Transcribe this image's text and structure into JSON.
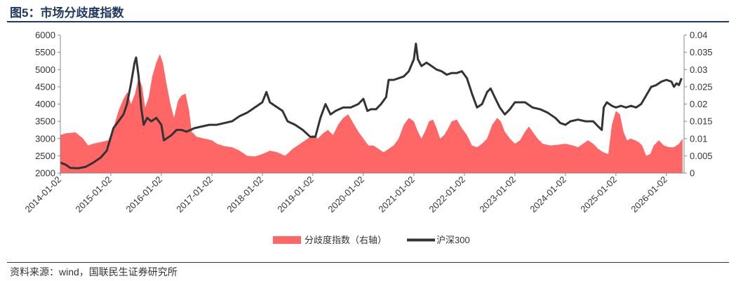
{
  "page": {
    "title": "图5：市场分歧度指数",
    "source": "资料来源：wind，国联民生证券研究所"
  },
  "chart_data": {
    "type": "area+line",
    "title": "",
    "x_tick_labels": [
      "2014-01-02",
      "2015-01-02",
      "2016-01-02",
      "2017-01-02",
      "2018-01-02",
      "2019-01-02",
      "2020-01-02",
      "2021-01-02",
      "2022-01-02",
      "2023-01-02",
      "2024-01-02",
      "2025-01-02",
      "2026-01-02"
    ],
    "x_range": [
      2014.0,
      2026.35
    ],
    "y_left": {
      "range": [
        2000,
        6000
      ],
      "ticks": [
        2000,
        2500,
        3000,
        3500,
        4000,
        4500,
        5000,
        5500,
        6000
      ]
    },
    "y_right": {
      "range": [
        0,
        0.04
      ],
      "ticks": [
        "0",
        "0.005",
        "0.01",
        "0.015",
        "0.02",
        "0.025",
        "0.03",
        "0.035",
        "0.04"
      ]
    },
    "legend_position": "bottom",
    "series": [
      {
        "name": "分歧度指数（右轴）",
        "type": "area",
        "axis": "right",
        "color": "#ff6666",
        "points": [
          [
            2014.0,
            0.011
          ],
          [
            2014.1,
            0.0115
          ],
          [
            2014.3,
            0.0118
          ],
          [
            2014.45,
            0.01
          ],
          [
            2014.55,
            0.008
          ],
          [
            2014.65,
            0.0085
          ],
          [
            2014.8,
            0.009
          ],
          [
            2014.95,
            0.0095
          ],
          [
            2015.05,
            0.013
          ],
          [
            2015.15,
            0.018
          ],
          [
            2015.25,
            0.0215
          ],
          [
            2015.33,
            0.0235
          ],
          [
            2015.4,
            0.02
          ],
          [
            2015.48,
            0.023
          ],
          [
            2015.55,
            0.028
          ],
          [
            2015.62,
            0.025
          ],
          [
            2015.68,
            0.019
          ],
          [
            2015.75,
            0.022
          ],
          [
            2015.82,
            0.028
          ],
          [
            2015.9,
            0.032
          ],
          [
            2015.97,
            0.0345
          ],
          [
            2016.03,
            0.032
          ],
          [
            2016.1,
            0.026
          ],
          [
            2016.18,
            0.02
          ],
          [
            2016.25,
            0.016
          ],
          [
            2016.33,
            0.021
          ],
          [
            2016.4,
            0.0225
          ],
          [
            2016.48,
            0.023
          ],
          [
            2016.55,
            0.018
          ],
          [
            2016.6,
            0.012
          ],
          [
            2016.7,
            0.0105
          ],
          [
            2016.85,
            0.01
          ],
          [
            2017.0,
            0.0095
          ],
          [
            2017.1,
            0.0085
          ],
          [
            2017.25,
            0.0078
          ],
          [
            2017.4,
            0.0075
          ],
          [
            2017.55,
            0.0065
          ],
          [
            2017.7,
            0.005
          ],
          [
            2017.85,
            0.0048
          ],
          [
            2018.0,
            0.0055
          ],
          [
            2018.15,
            0.0065
          ],
          [
            2018.3,
            0.006
          ],
          [
            2018.45,
            0.005
          ],
          [
            2018.6,
            0.007
          ],
          [
            2018.75,
            0.0085
          ],
          [
            2018.9,
            0.01
          ],
          [
            2019.0,
            0.011
          ],
          [
            2019.1,
            0.01
          ],
          [
            2019.2,
            0.0115
          ],
          [
            2019.3,
            0.0125
          ],
          [
            2019.4,
            0.011
          ],
          [
            2019.5,
            0.014
          ],
          [
            2019.6,
            0.016
          ],
          [
            2019.7,
            0.017
          ],
          [
            2019.8,
            0.0145
          ],
          [
            2019.9,
            0.012
          ],
          [
            2020.0,
            0.01
          ],
          [
            2020.1,
            0.008
          ],
          [
            2020.2,
            0.008
          ],
          [
            2020.3,
            0.007
          ],
          [
            2020.4,
            0.006
          ],
          [
            2020.5,
            0.007
          ],
          [
            2020.6,
            0.008
          ],
          [
            2020.7,
            0.01
          ],
          [
            2020.8,
            0.014
          ],
          [
            2020.9,
            0.016
          ],
          [
            2021.0,
            0.015
          ],
          [
            2021.08,
            0.012
          ],
          [
            2021.15,
            0.01
          ],
          [
            2021.22,
            0.012
          ],
          [
            2021.3,
            0.015
          ],
          [
            2021.38,
            0.0155
          ],
          [
            2021.45,
            0.013
          ],
          [
            2021.52,
            0.01
          ],
          [
            2021.6,
            0.011
          ],
          [
            2021.68,
            0.013
          ],
          [
            2021.75,
            0.015
          ],
          [
            2021.85,
            0.0155
          ],
          [
            2021.95,
            0.013
          ],
          [
            2022.05,
            0.011
          ],
          [
            2022.15,
            0.008
          ],
          [
            2022.25,
            0.0075
          ],
          [
            2022.35,
            0.0085
          ],
          [
            2022.45,
            0.01
          ],
          [
            2022.55,
            0.014
          ],
          [
            2022.65,
            0.016
          ],
          [
            2022.72,
            0.015
          ],
          [
            2022.8,
            0.012
          ],
          [
            2022.9,
            0.01
          ],
          [
            2023.0,
            0.0085
          ],
          [
            2023.1,
            0.0095
          ],
          [
            2023.2,
            0.012
          ],
          [
            2023.28,
            0.0135
          ],
          [
            2023.35,
            0.012
          ],
          [
            2023.45,
            0.01
          ],
          [
            2023.55,
            0.0085
          ],
          [
            2023.7,
            0.008
          ],
          [
            2023.85,
            0.0082
          ],
          [
            2024.0,
            0.0085
          ],
          [
            2024.15,
            0.008
          ],
          [
            2024.25,
            0.0075
          ],
          [
            2024.35,
            0.0085
          ],
          [
            2024.45,
            0.0095
          ],
          [
            2024.55,
            0.0085
          ],
          [
            2024.65,
            0.007
          ],
          [
            2024.75,
            0.006
          ],
          [
            2024.85,
            0.0055
          ],
          [
            2024.92,
            0.014
          ],
          [
            2025.0,
            0.018
          ],
          [
            2025.08,
            0.017
          ],
          [
            2025.15,
            0.012
          ],
          [
            2025.22,
            0.0095
          ],
          [
            2025.3,
            0.01
          ],
          [
            2025.38,
            0.0095
          ],
          [
            2025.45,
            0.009
          ],
          [
            2025.52,
            0.008
          ],
          [
            2025.6,
            0.005
          ],
          [
            2025.68,
            0.0055
          ],
          [
            2025.75,
            0.008
          ],
          [
            2025.85,
            0.0095
          ],
          [
            2025.95,
            0.008
          ],
          [
            2026.05,
            0.0075
          ],
          [
            2026.15,
            0.0075
          ],
          [
            2026.25,
            0.0085
          ],
          [
            2026.32,
            0.01
          ]
        ]
      },
      {
        "name": "沪深300",
        "type": "line",
        "axis": "left",
        "color": "#333333",
        "points": [
          [
            2014.0,
            2300
          ],
          [
            2014.1,
            2250
          ],
          [
            2014.2,
            2150
          ],
          [
            2014.35,
            2140
          ],
          [
            2014.5,
            2180
          ],
          [
            2014.65,
            2300
          ],
          [
            2014.8,
            2450
          ],
          [
            2014.92,
            2650
          ],
          [
            2015.05,
            3300
          ],
          [
            2015.15,
            3500
          ],
          [
            2015.25,
            3700
          ],
          [
            2015.32,
            4000
          ],
          [
            2015.4,
            4600
          ],
          [
            2015.47,
            5200
          ],
          [
            2015.5,
            5350
          ],
          [
            2015.55,
            4800
          ],
          [
            2015.6,
            3900
          ],
          [
            2015.65,
            3400
          ],
          [
            2015.72,
            3600
          ],
          [
            2015.8,
            3500
          ],
          [
            2015.9,
            3600
          ],
          [
            2016.0,
            3400
          ],
          [
            2016.05,
            2950
          ],
          [
            2016.1,
            3000
          ],
          [
            2016.2,
            3100
          ],
          [
            2016.3,
            3250
          ],
          [
            2016.4,
            3250
          ],
          [
            2016.5,
            3200
          ],
          [
            2016.65,
            3300
          ],
          [
            2016.8,
            3350
          ],
          [
            2016.95,
            3400
          ],
          [
            2017.1,
            3400
          ],
          [
            2017.25,
            3450
          ],
          [
            2017.4,
            3500
          ],
          [
            2017.55,
            3650
          ],
          [
            2017.7,
            3750
          ],
          [
            2017.85,
            3900
          ],
          [
            2018.0,
            4050
          ],
          [
            2018.08,
            4350
          ],
          [
            2018.15,
            4050
          ],
          [
            2018.25,
            3950
          ],
          [
            2018.4,
            3800
          ],
          [
            2018.5,
            3500
          ],
          [
            2018.65,
            3400
          ],
          [
            2018.8,
            3250
          ],
          [
            2018.95,
            3050
          ],
          [
            2019.05,
            3050
          ],
          [
            2019.15,
            3600
          ],
          [
            2019.25,
            4000
          ],
          [
            2019.35,
            3700
          ],
          [
            2019.45,
            3800
          ],
          [
            2019.6,
            3900
          ],
          [
            2019.75,
            3900
          ],
          [
            2019.9,
            4000
          ],
          [
            2020.0,
            4150
          ],
          [
            2020.08,
            3800
          ],
          [
            2020.15,
            3850
          ],
          [
            2020.25,
            3850
          ],
          [
            2020.35,
            4000
          ],
          [
            2020.45,
            4200
          ],
          [
            2020.5,
            4700
          ],
          [
            2020.6,
            4700
          ],
          [
            2020.7,
            4750
          ],
          [
            2020.8,
            4800
          ],
          [
            2020.9,
            4950
          ],
          [
            2021.0,
            5300
          ],
          [
            2021.04,
            5750
          ],
          [
            2021.08,
            5300
          ],
          [
            2021.15,
            5100
          ],
          [
            2021.25,
            5200
          ],
          [
            2021.35,
            5100
          ],
          [
            2021.45,
            5000
          ],
          [
            2021.55,
            4950
          ],
          [
            2021.65,
            4850
          ],
          [
            2021.75,
            4900
          ],
          [
            2021.85,
            4900
          ],
          [
            2021.95,
            4950
          ],
          [
            2022.05,
            4750
          ],
          [
            2022.15,
            4300
          ],
          [
            2022.25,
            3900
          ],
          [
            2022.35,
            4000
          ],
          [
            2022.45,
            4350
          ],
          [
            2022.52,
            4450
          ],
          [
            2022.6,
            4200
          ],
          [
            2022.7,
            3900
          ],
          [
            2022.8,
            3700
          ],
          [
            2022.9,
            3850
          ],
          [
            2023.0,
            4050
          ],
          [
            2023.1,
            4050
          ],
          [
            2023.2,
            4050
          ],
          [
            2023.35,
            3900
          ],
          [
            2023.5,
            3850
          ],
          [
            2023.65,
            3750
          ],
          [
            2023.8,
            3600
          ],
          [
            2023.9,
            3450
          ],
          [
            2024.0,
            3400
          ],
          [
            2024.1,
            3500
          ],
          [
            2024.25,
            3550
          ],
          [
            2024.4,
            3500
          ],
          [
            2024.55,
            3500
          ],
          [
            2024.65,
            3350
          ],
          [
            2024.72,
            3250
          ],
          [
            2024.76,
            3900
          ],
          [
            2024.82,
            4050
          ],
          [
            2024.92,
            3950
          ],
          [
            2025.0,
            3900
          ],
          [
            2025.1,
            3950
          ],
          [
            2025.2,
            3900
          ],
          [
            2025.3,
            3950
          ],
          [
            2025.4,
            3900
          ],
          [
            2025.5,
            4000
          ],
          [
            2025.6,
            4250
          ],
          [
            2025.7,
            4500
          ],
          [
            2025.8,
            4550
          ],
          [
            2025.9,
            4650
          ],
          [
            2026.0,
            4700
          ],
          [
            2026.1,
            4650
          ],
          [
            2026.15,
            4500
          ],
          [
            2026.2,
            4600
          ],
          [
            2026.25,
            4550
          ],
          [
            2026.3,
            4750
          ]
        ]
      }
    ]
  }
}
